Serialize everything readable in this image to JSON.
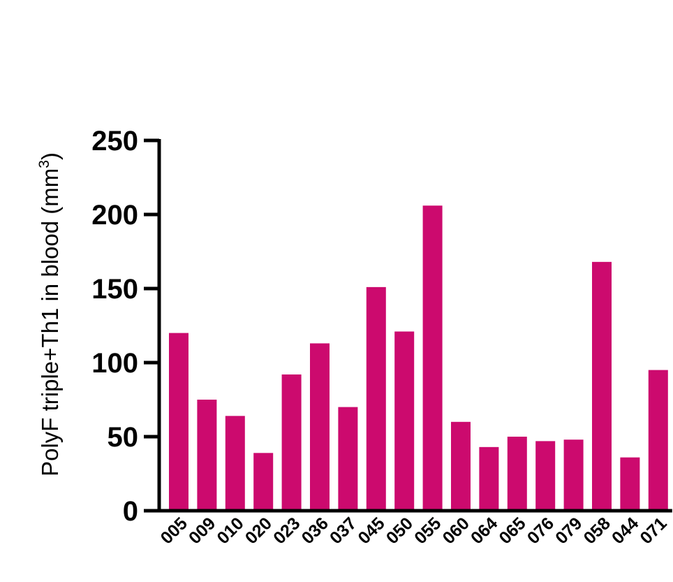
{
  "chart_data": {
    "type": "bar",
    "categories": [
      "005",
      "009",
      "010",
      "020",
      "023",
      "036",
      "037",
      "045",
      "050",
      "055",
      "060",
      "064",
      "065",
      "076",
      "079",
      "058",
      "044",
      "071"
    ],
    "values": [
      120,
      75,
      64,
      39,
      92,
      113,
      70,
      151,
      121,
      206,
      60,
      43,
      50,
      47,
      48,
      168,
      36,
      95
    ],
    "ylabel": "PolyF triple+Th1 in blood (mm",
    "ylabel_superscript": "3",
    "ylabel_suffix": ")",
    "ylim": [
      0,
      250
    ],
    "yticks": [
      0,
      50,
      100,
      150,
      200,
      250
    ],
    "bar_color": "#CC0A6E",
    "grid": false,
    "legend": "none"
  }
}
